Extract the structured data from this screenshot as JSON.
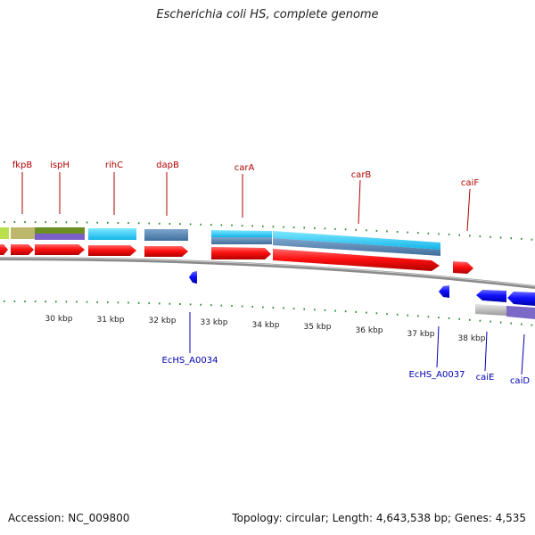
{
  "title": "Escherichia coli HS, complete genome",
  "footer": {
    "accession": "Accession: NC_009800",
    "summary": "Topology: circular; Length: 4,643,538 bp; Genes: 4,535"
  },
  "colors": {
    "backbone": "#909090",
    "tick": "#2e8b2e",
    "forward_gene": "#ff1a1a",
    "reverse_gene": "#1a1aff",
    "forward_label": "#b00000",
    "reverse_label": "#0000b0"
  },
  "ruler": {
    "unit": "kbp",
    "labels": [
      "30 kbp",
      "31 kbp",
      "32 kbp",
      "33 kbp",
      "34 kbp",
      "35 kbp",
      "36 kbp",
      "37 kbp",
      "38 kbp"
    ]
  },
  "genes": {
    "forward": [
      "fkpB",
      "ispH",
      "rihC",
      "dapB",
      "carA",
      "carB",
      "caiF"
    ],
    "reverse": [
      "EcHS_A0034",
      "EcHS_A0037",
      "caiE",
      "caiD"
    ]
  }
}
